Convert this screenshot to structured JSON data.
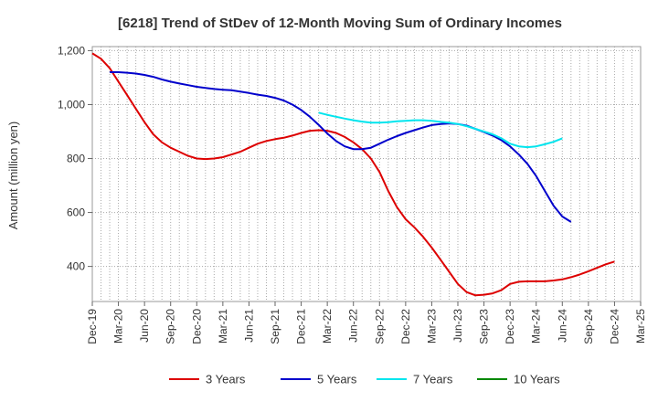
{
  "chart_data": {
    "type": "line",
    "title": "[6218]  Trend of StDev of 12-Month Moving Sum of Ordinary Incomes",
    "xlabel": "",
    "ylabel": "Amount (million yen)",
    "ylim": [
      270,
      1215
    ],
    "y_ticks": [
      400,
      600,
      800,
      1000,
      1200
    ],
    "y_tick_labels": [
      "400",
      "600",
      "800",
      "1,000",
      "1,200"
    ],
    "x_tick_labels": [
      "Dec-19",
      "Mar-20",
      "Jun-20",
      "Sep-20",
      "Dec-20",
      "Mar-21",
      "Jun-21",
      "Sep-21",
      "Dec-21",
      "Mar-22",
      "Jun-22",
      "Sep-22",
      "Dec-22",
      "Mar-23",
      "Jun-23",
      "Sep-23",
      "Dec-23",
      "Mar-24",
      "Jun-24",
      "Sep-24",
      "Dec-24",
      "Mar-25"
    ],
    "months_total": 63,
    "series": [
      {
        "name": "3 Years",
        "color": "#dd0000",
        "start_month": 0,
        "values": [
          1190,
          1170,
          1135,
          1085,
          1035,
          985,
          935,
          890,
          860,
          840,
          825,
          810,
          800,
          798,
          800,
          805,
          815,
          825,
          840,
          855,
          865,
          872,
          877,
          885,
          895,
          903,
          905,
          903,
          895,
          880,
          860,
          835,
          800,
          750,
          680,
          620,
          575,
          545,
          510,
          470,
          425,
          380,
          335,
          305,
          293,
          295,
          300,
          312,
          335,
          343,
          345,
          345,
          345,
          348,
          352,
          360,
          370,
          382,
          395,
          408,
          418
        ]
      },
      {
        "name": "5 Years",
        "color": "#0000cc",
        "start_month": 2,
        "values": [
          1120,
          1120,
          1118,
          1115,
          1110,
          1103,
          1093,
          1085,
          1078,
          1072,
          1066,
          1062,
          1058,
          1055,
          1053,
          1048,
          1043,
          1037,
          1032,
          1025,
          1015,
          1000,
          980,
          955,
          925,
          893,
          865,
          845,
          835,
          835,
          840,
          855,
          870,
          883,
          895,
          905,
          915,
          924,
          928,
          930,
          928,
          922,
          910,
          898,
          885,
          868,
          845,
          815,
          780,
          735,
          680,
          625,
          585,
          565
        ]
      },
      {
        "name": "7 Years",
        "color": "#00e5ee",
        "start_month": 26,
        "values": [
          970,
          962,
          955,
          948,
          942,
          937,
          933,
          933,
          935,
          938,
          940,
          942,
          942,
          940,
          936,
          933,
          928,
          920,
          910,
          900,
          890,
          875,
          855,
          845,
          842,
          845,
          853,
          862,
          875
        ]
      },
      {
        "name": "10 Years",
        "color": "#008800",
        "start_month": 0,
        "values": []
      }
    ]
  }
}
